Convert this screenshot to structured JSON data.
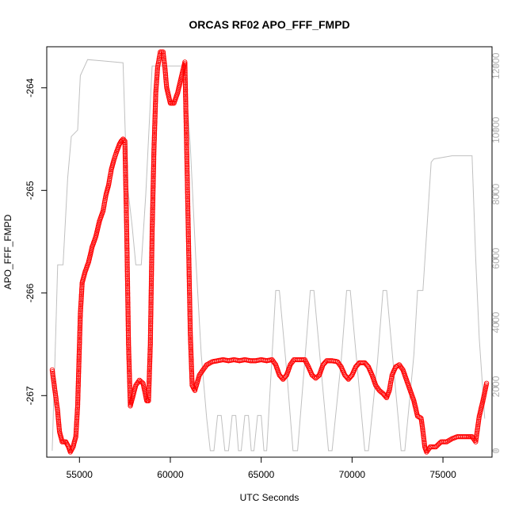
{
  "chart_data": {
    "type": "scatter",
    "title": "ORCAS RF02 APO_FFF_FMPD",
    "xlabel": "UTC Seconds",
    "ylabel": "APO_FFF_FMPD",
    "xlim": [
      53200,
      77700
    ],
    "ylim": [
      -267.6,
      -263.6
    ],
    "x_ticks": [
      55000,
      60000,
      65000,
      70000,
      75000
    ],
    "x_tick_labels": [
      "55000",
      "60000",
      "65000",
      "70000",
      "75000"
    ],
    "y_ticks": [
      -267,
      -266,
      -265,
      -264
    ],
    "y_tick_labels": [
      "-267",
      "-266",
      "-265",
      "-264"
    ],
    "y2lim": [
      -200,
      12600
    ],
    "y2_ticks": [
      0,
      2000,
      4000,
      6000,
      8000,
      10000,
      12000
    ],
    "y2_tick_labels": [
      "0",
      "2000",
      "4000",
      "6000",
      "8000",
      "10000",
      "12000"
    ],
    "grid": false,
    "series": [
      {
        "marker": "open-circle",
        "color": "#ff0000",
        "axis": "left",
        "points": [
          [
            53500,
            -266.75
          ],
          [
            53650,
            -266.95
          ],
          [
            53800,
            -267.15
          ],
          [
            53900,
            -267.35
          ],
          [
            54050,
            -267.45
          ],
          [
            54250,
            -267.45
          ],
          [
            54400,
            -267.5
          ],
          [
            54500,
            -267.55
          ],
          [
            54650,
            -267.5
          ],
          [
            54800,
            -267.4
          ],
          [
            54900,
            -267.1
          ],
          [
            54950,
            -266.8
          ],
          [
            55000,
            -266.5
          ],
          [
            55050,
            -266.2
          ],
          [
            55150,
            -265.9
          ],
          [
            55300,
            -265.8
          ],
          [
            55500,
            -265.7
          ],
          [
            55700,
            -265.55
          ],
          [
            55900,
            -265.45
          ],
          [
            56100,
            -265.3
          ],
          [
            56300,
            -265.2
          ],
          [
            56450,
            -265.05
          ],
          [
            56600,
            -264.95
          ],
          [
            56750,
            -264.8
          ],
          [
            56900,
            -264.7
          ],
          [
            57050,
            -264.62
          ],
          [
            57200,
            -264.55
          ],
          [
            57300,
            -264.52
          ],
          [
            57400,
            -264.5
          ],
          [
            57500,
            -264.52
          ],
          [
            57600,
            -265.4
          ],
          [
            57700,
            -266.5
          ],
          [
            57800,
            -267.1
          ],
          [
            57950,
            -267.0
          ],
          [
            58100,
            -266.9
          ],
          [
            58300,
            -266.85
          ],
          [
            58500,
            -266.88
          ],
          [
            58700,
            -267.05
          ],
          [
            58800,
            -267.05
          ],
          [
            58900,
            -266.5
          ],
          [
            59000,
            -265.4
          ],
          [
            59100,
            -264.6
          ],
          [
            59200,
            -264.05
          ],
          [
            59300,
            -263.8
          ],
          [
            59400,
            -263.7
          ],
          [
            59450,
            -263.65
          ],
          [
            59600,
            -263.65
          ],
          [
            59700,
            -263.8
          ],
          [
            59800,
            -264.0
          ],
          [
            60000,
            -264.15
          ],
          [
            60200,
            -264.15
          ],
          [
            60400,
            -264.05
          ],
          [
            60600,
            -263.9
          ],
          [
            60800,
            -263.75
          ],
          [
            60900,
            -264.6
          ],
          [
            61000,
            -265.5
          ],
          [
            61100,
            -266.4
          ],
          [
            61200,
            -266.9
          ],
          [
            61350,
            -266.95
          ],
          [
            61600,
            -266.8
          ],
          [
            61800,
            -266.75
          ],
          [
            62000,
            -266.7
          ],
          [
            62300,
            -266.67
          ],
          [
            62600,
            -266.66
          ],
          [
            62900,
            -266.65
          ],
          [
            63200,
            -266.66
          ],
          [
            63500,
            -266.65
          ],
          [
            63800,
            -266.66
          ],
          [
            64100,
            -266.65
          ],
          [
            64400,
            -266.66
          ],
          [
            64700,
            -266.66
          ],
          [
            65000,
            -266.65
          ],
          [
            65300,
            -266.66
          ],
          [
            65600,
            -266.65
          ],
          [
            65800,
            -266.7
          ],
          [
            66000,
            -266.8
          ],
          [
            66200,
            -266.84
          ],
          [
            66400,
            -266.8
          ],
          [
            66600,
            -266.7
          ],
          [
            66800,
            -266.65
          ],
          [
            67100,
            -266.65
          ],
          [
            67400,
            -266.65
          ],
          [
            67600,
            -266.72
          ],
          [
            67800,
            -266.8
          ],
          [
            68000,
            -266.83
          ],
          [
            68200,
            -266.8
          ],
          [
            68400,
            -266.7
          ],
          [
            68600,
            -266.66
          ],
          [
            68900,
            -266.66
          ],
          [
            69200,
            -266.67
          ],
          [
            69400,
            -266.72
          ],
          [
            69600,
            -266.8
          ],
          [
            69800,
            -266.84
          ],
          [
            70000,
            -266.8
          ],
          [
            70200,
            -266.72
          ],
          [
            70400,
            -266.68
          ],
          [
            70700,
            -266.68
          ],
          [
            70900,
            -266.72
          ],
          [
            71100,
            -266.8
          ],
          [
            71300,
            -266.9
          ],
          [
            71500,
            -266.95
          ],
          [
            71700,
            -266.98
          ],
          [
            71900,
            -267.02
          ],
          [
            72050,
            -266.95
          ],
          [
            72200,
            -266.8
          ],
          [
            72400,
            -266.72
          ],
          [
            72600,
            -266.7
          ],
          [
            72800,
            -266.75
          ],
          [
            73000,
            -266.85
          ],
          [
            73200,
            -266.95
          ],
          [
            73400,
            -267.05
          ],
          [
            73600,
            -267.2
          ],
          [
            73800,
            -267.22
          ],
          [
            73900,
            -267.35
          ],
          [
            74000,
            -267.5
          ],
          [
            74100,
            -267.55
          ],
          [
            74300,
            -267.5
          ],
          [
            74600,
            -267.5
          ],
          [
            74900,
            -267.45
          ],
          [
            75200,
            -267.45
          ],
          [
            75500,
            -267.42
          ],
          [
            75800,
            -267.4
          ],
          [
            76100,
            -267.4
          ],
          [
            76400,
            -267.4
          ],
          [
            76600,
            -267.4
          ],
          [
            76800,
            -267.45
          ],
          [
            77000,
            -267.2
          ],
          [
            77200,
            -267.05
          ],
          [
            77400,
            -266.88
          ]
        ]
      },
      {
        "marker": "line",
        "color": "#c0c0c0",
        "axis": "right",
        "points": [
          [
            53500,
            0
          ],
          [
            53700,
            3800
          ],
          [
            53800,
            5800
          ],
          [
            54000,
            5800
          ],
          [
            54100,
            5800
          ],
          [
            54350,
            8500
          ],
          [
            54550,
            9800
          ],
          [
            54900,
            10000
          ],
          [
            55050,
            11700
          ],
          [
            55450,
            12200
          ],
          [
            57400,
            12100
          ],
          [
            57600,
            8500
          ],
          [
            57900,
            7000
          ],
          [
            58100,
            5800
          ],
          [
            58400,
            5800
          ],
          [
            58650,
            8000
          ],
          [
            59000,
            12000
          ],
          [
            60800,
            12000
          ],
          [
            61100,
            9500
          ],
          [
            61400,
            6000
          ],
          [
            61700,
            3000
          ],
          [
            62000,
            1000
          ],
          [
            62200,
            0
          ],
          [
            62400,
            0
          ],
          [
            62600,
            1100
          ],
          [
            62800,
            1100
          ],
          [
            63000,
            0
          ],
          [
            63200,
            0
          ],
          [
            63400,
            1100
          ],
          [
            63600,
            1100
          ],
          [
            63750,
            0
          ],
          [
            63900,
            0
          ],
          [
            64100,
            1100
          ],
          [
            64300,
            1100
          ],
          [
            64450,
            0
          ],
          [
            64600,
            0
          ],
          [
            64800,
            1100
          ],
          [
            65000,
            1100
          ],
          [
            65150,
            0
          ],
          [
            65300,
            0
          ],
          [
            65550,
            2500
          ],
          [
            65800,
            5000
          ],
          [
            66000,
            5000
          ],
          [
            66400,
            2500
          ],
          [
            66750,
            0
          ],
          [
            67000,
            0
          ],
          [
            67400,
            2800
          ],
          [
            67700,
            5000
          ],
          [
            67900,
            5000
          ],
          [
            68300,
            2500
          ],
          [
            68700,
            0
          ],
          [
            68900,
            0
          ],
          [
            69400,
            2800
          ],
          [
            69700,
            5000
          ],
          [
            69900,
            5000
          ],
          [
            70300,
            2500
          ],
          [
            70700,
            0
          ],
          [
            70900,
            0
          ],
          [
            71400,
            2800
          ],
          [
            71700,
            5000
          ],
          [
            71900,
            5000
          ],
          [
            72300,
            2500
          ],
          [
            72700,
            0
          ],
          [
            72900,
            0
          ],
          [
            73400,
            3000
          ],
          [
            73600,
            5000
          ],
          [
            73900,
            5000
          ],
          [
            74350,
            9000
          ],
          [
            74500,
            9100
          ],
          [
            75500,
            9200
          ],
          [
            76000,
            9200
          ],
          [
            76600,
            9200
          ],
          [
            76800,
            6000
          ],
          [
            77000,
            3500
          ],
          [
            77300,
            1000
          ]
        ]
      }
    ]
  }
}
